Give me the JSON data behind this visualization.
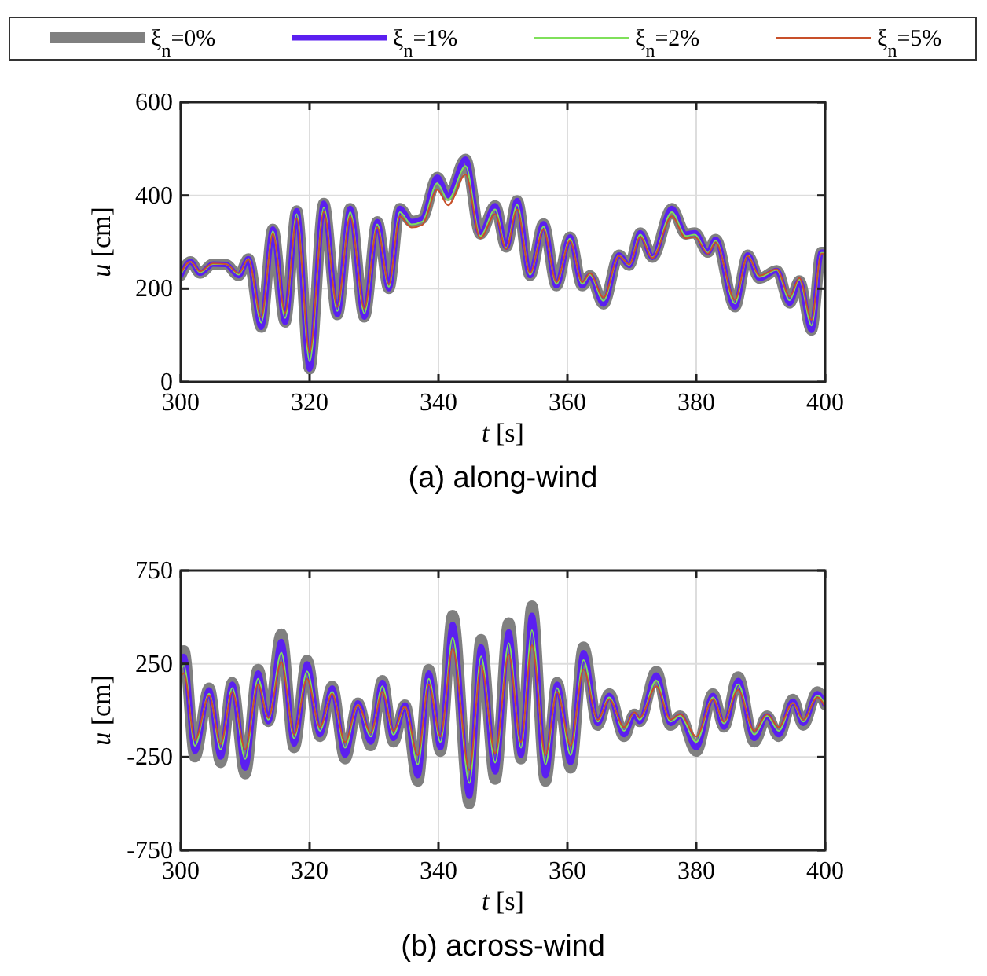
{
  "chart_data": [
    {
      "type": "line",
      "title": "(a) along-wind",
      "xlabel": "t [s]",
      "ylabel": "u [cm]",
      "legend": "top",
      "grid": true,
      "xlim": [
        300,
        400
      ],
      "xticks": [
        300,
        320,
        340,
        360,
        380,
        400
      ],
      "ylim": [
        0,
        600
      ],
      "yticks": [
        0,
        200,
        400,
        600
      ],
      "x": [
        300,
        301.5,
        303,
        305,
        307,
        309,
        310.5,
        312.5,
        314.3,
        316.2,
        318,
        320,
        322.2,
        324.3,
        326.3,
        328.5,
        330.5,
        332.3,
        334,
        335.8,
        337.5,
        339.8,
        341.5,
        344.2,
        346.5,
        348.8,
        350.5,
        352.2,
        354.2,
        356.3,
        358.3,
        360.4,
        362.3,
        363.5,
        365.6,
        368,
        369.6,
        371.3,
        373.2,
        376.2,
        378.4,
        379.8,
        381.8,
        383,
        386,
        388,
        389.8,
        392.5,
        394.5,
        396,
        397.9,
        399.4,
        400
      ],
      "series": [
        {
          "name": "ξ$_{n}$=0%",
          "color": "#808080",
          "values": [
            228,
            258,
            233,
            253,
            252,
            228,
            264,
            117,
            328,
            128,
            367,
            28,
            383,
            144,
            372,
            139,
            344,
            200,
            372,
            344,
            350,
            439,
            400,
            478,
            317,
            378,
            289,
            389,
            228,
            339,
            206,
            311,
            206,
            228,
            167,
            272,
            250,
            320,
            267,
            372,
            317,
            320,
            278,
            306,
            161,
            272,
            222,
            239,
            169,
            217,
            111,
            278,
            278
          ]
        },
        {
          "name": "ξ$_{n}$=1%",
          "color": "#5b1ff0",
          "values": [
            228,
            258,
            233,
            253,
            252,
            228,
            264,
            117,
            328,
            128,
            367,
            28,
            383,
            144,
            372,
            139,
            344,
            200,
            372,
            344,
            350,
            439,
            400,
            478,
            317,
            378,
            289,
            389,
            228,
            339,
            206,
            311,
            206,
            228,
            167,
            272,
            250,
            320,
            267,
            372,
            317,
            320,
            278,
            306,
            161,
            272,
            222,
            239,
            169,
            217,
            111,
            278,
            278
          ]
        },
        {
          "name": "ξ$_{n}$=2%",
          "color": "#7fe05a",
          "values": [
            230,
            258,
            235,
            253,
            253,
            230,
            264,
            127,
            323,
            137,
            360,
            44,
            374,
            152,
            364,
            147,
            338,
            204,
            364,
            338,
            344,
            426,
            390,
            463,
            313,
            370,
            287,
            380,
            230,
            333,
            210,
            307,
            210,
            230,
            174,
            271,
            251,
            316,
            267,
            364,
            313,
            316,
            277,
            303,
            168,
            271,
            225,
            240,
            175,
            220,
            121,
            277,
            277
          ]
        },
        {
          "name": "ξ$_{n}$=5%",
          "color": "#c8502a",
          "values": [
            233,
            258,
            237,
            254,
            253,
            233,
            263,
            138,
            318,
            148,
            351,
            63,
            365,
            161,
            355,
            157,
            331,
            209,
            355,
            331,
            337,
            412,
            379,
            445,
            308,
            360,
            285,
            370,
            233,
            327,
            214,
            303,
            214,
            233,
            181,
            270,
            252,
            311,
            266,
            355,
            308,
            311,
            275,
            299,
            176,
            270,
            228,
            242,
            183,
            223,
            133,
            275,
            275
          ]
        }
      ]
    },
    {
      "type": "line",
      "title": "(b) across-wind",
      "xlabel": "t [s]",
      "ylabel": "u [cm]",
      "grid": true,
      "xlim": [
        300,
        400
      ],
      "xticks": [
        300,
        320,
        340,
        360,
        380,
        400
      ],
      "ylim": [
        -750,
        750
      ],
      "yticks": [
        -750,
        -250,
        250,
        750
      ],
      "x": [
        300,
        300.5,
        302.2,
        304.4,
        306.2,
        308,
        310,
        312,
        313.6,
        315.6,
        317.6,
        319.6,
        321.6,
        323.5,
        325.5,
        327.5,
        329.5,
        331.3,
        333,
        334.8,
        336.8,
        338.5,
        340.3,
        342.2,
        344.8,
        346.6,
        348.8,
        350.9,
        352.8,
        354.5,
        356.6,
        358.4,
        360.5,
        362.5,
        364.7,
        366.5,
        368.8,
        370.4,
        371.2,
        373.8,
        376,
        377.5,
        380,
        382.6,
        384.3,
        386.5,
        389,
        391,
        392.8,
        395,
        396.6,
        398.8,
        400
      ],
      "series": [
        {
          "color": "#808080",
          "values": [
            280,
            320,
            -250,
            120,
            -280,
            150,
            -340,
            220,
            -60,
            410,
            -200,
            270,
            -140,
            130,
            -260,
            40,
            -190,
            160,
            -170,
            30,
            -380,
            220,
            -220,
            510,
            -500,
            380,
            -370,
            470,
            -260,
            560,
            -380,
            150,
            -310,
            340,
            -80,
            90,
            -140,
            -20,
            -60,
            210,
            -80,
            -30,
            -220,
            90,
            -90,
            180,
            -170,
            -30,
            -140,
            60,
            -80,
            100,
            30
          ]
        },
        {
          "color": "#5b1ff0",
          "values": [
            260,
            290,
            -220,
            110,
            -250,
            140,
            -310,
            200,
            -60,
            370,
            -180,
            250,
            -130,
            120,
            -240,
            40,
            -170,
            150,
            -150,
            30,
            -350,
            200,
            -200,
            460,
            -460,
            340,
            -330,
            420,
            -240,
            510,
            -350,
            140,
            -280,
            310,
            -70,
            80,
            -130,
            -20,
            -60,
            190,
            -70,
            -30,
            -200,
            80,
            -90,
            160,
            -150,
            -30,
            -130,
            50,
            -70,
            90,
            30
          ]
        },
        {
          "color": "#7fe05a",
          "values": [
            220,
            240,
            -190,
            90,
            -210,
            120,
            -260,
            170,
            -50,
            310,
            -150,
            210,
            -110,
            100,
            -200,
            30,
            -140,
            130,
            -130,
            20,
            -290,
            170,
            -170,
            390,
            -390,
            290,
            -280,
            360,
            -200,
            430,
            -290,
            120,
            -240,
            270,
            -60,
            70,
            -110,
            -10,
            -50,
            160,
            -60,
            -30,
            -170,
            70,
            -70,
            140,
            -130,
            -30,
            -110,
            40,
            -60,
            80,
            30
          ]
        },
        {
          "color": "#c8502a",
          "values": [
            180,
            200,
            -160,
            80,
            -180,
            100,
            -210,
            140,
            -40,
            260,
            -130,
            170,
            -90,
            90,
            -170,
            30,
            -120,
            100,
            -110,
            20,
            -240,
            140,
            -140,
            330,
            -320,
            240,
            -230,
            300,
            -170,
            350,
            -240,
            100,
            -190,
            220,
            -50,
            60,
            -90,
            -10,
            -40,
            130,
            -50,
            -20,
            -140,
            60,
            -60,
            110,
            -110,
            -20,
            -90,
            40,
            -50,
            70,
            20
          ]
        }
      ]
    }
  ]
}
